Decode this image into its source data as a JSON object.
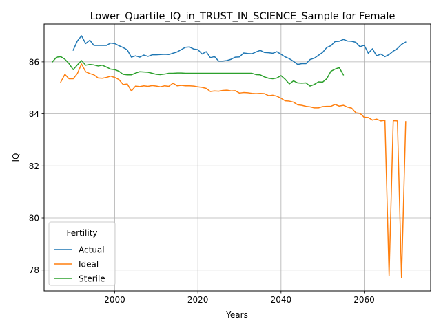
{
  "chart_data": {
    "type": "line",
    "title": "Lower_Quartile_IQ_in_TRUST_IN_SCIENCE_Sample for Female",
    "xlabel": "Years",
    "ylabel": "IQ",
    "xlim": [
      1983,
      2076
    ],
    "ylim": [
      77.2,
      87.45
    ],
    "xticks": [
      2000,
      2020,
      2040,
      2060
    ],
    "yticks": [
      78,
      80,
      82,
      84,
      86
    ],
    "grid": true,
    "legend": {
      "title": "Fertility",
      "placement": "lower-left"
    },
    "series": [
      {
        "name": "Actual",
        "color": "#1f77b4",
        "x": [
          1990,
          1991,
          1992,
          1993,
          1994,
          1995,
          1996,
          1997,
          1998,
          1999,
          2000,
          2001,
          2002,
          2003,
          2004,
          2005,
          2006,
          2007,
          2008,
          2009,
          2010,
          2011,
          2012,
          2013,
          2014,
          2015,
          2016,
          2017,
          2018,
          2019,
          2020,
          2021,
          2022,
          2023,
          2024,
          2025,
          2026,
          2027,
          2028,
          2029,
          2030,
          2031,
          2032,
          2033,
          2034,
          2035,
          2036,
          2037,
          2038,
          2039,
          2040,
          2041,
          2042,
          2043,
          2044,
          2045,
          2046,
          2047,
          2048,
          2049,
          2050,
          2051,
          2052,
          2053,
          2054,
          2055,
          2056,
          2057,
          2058,
          2059,
          2060,
          2061,
          2062,
          2063,
          2064,
          2065,
          2066,
          2067,
          2068,
          2069,
          2070
        ],
        "values": [
          86.45,
          86.8,
          87.0,
          86.7,
          86.83,
          86.63,
          86.63,
          86.63,
          86.63,
          86.72,
          86.7,
          86.62,
          86.55,
          86.46,
          86.18,
          86.23,
          86.18,
          86.26,
          86.21,
          86.27,
          86.27,
          86.28,
          86.29,
          86.28,
          86.33,
          86.38,
          86.47,
          86.56,
          86.57,
          86.49,
          86.47,
          86.3,
          86.39,
          86.16,
          86.2,
          86.03,
          86.03,
          86.05,
          86.1,
          86.18,
          86.19,
          86.34,
          86.32,
          86.31,
          86.38,
          86.44,
          86.36,
          86.35,
          86.33,
          86.39,
          86.29,
          86.19,
          86.12,
          86.02,
          85.9,
          85.93,
          85.93,
          86.09,
          86.14,
          86.25,
          86.36,
          86.55,
          86.62,
          86.78,
          86.79,
          86.86,
          86.8,
          86.79,
          86.75,
          86.58,
          86.64,
          86.33,
          86.5,
          86.23,
          86.3,
          86.2,
          86.28,
          86.41,
          86.51,
          86.67,
          86.76
        ]
      },
      {
        "name": "Ideal",
        "color": "#ff7f0e",
        "x": [
          1987,
          1988,
          1989,
          1990,
          1991,
          1992,
          1993,
          1994,
          1995,
          1996,
          1997,
          1998,
          1999,
          2000,
          2001,
          2002,
          2003,
          2004,
          2005,
          2006,
          2007,
          2008,
          2009,
          2010,
          2011,
          2012,
          2013,
          2014,
          2015,
          2016,
          2017,
          2018,
          2019,
          2020,
          2021,
          2022,
          2023,
          2024,
          2025,
          2026,
          2027,
          2028,
          2029,
          2030,
          2031,
          2032,
          2033,
          2034,
          2035,
          2036,
          2037,
          2038,
          2039,
          2040,
          2041,
          2042,
          2043,
          2044,
          2045,
          2046,
          2047,
          2048,
          2049,
          2050,
          2051,
          2052,
          2053,
          2054,
          2055,
          2056,
          2057,
          2058,
          2059,
          2060,
          2061,
          2062,
          2063,
          2064,
          2065,
          2066,
          2067,
          2068,
          2069,
          2070
        ],
        "values": [
          85.22,
          85.52,
          85.35,
          85.35,
          85.55,
          85.92,
          85.62,
          85.55,
          85.5,
          85.38,
          85.37,
          85.4,
          85.45,
          85.4,
          85.32,
          85.13,
          85.15,
          84.88,
          85.07,
          85.05,
          85.08,
          85.06,
          85.09,
          85.07,
          85.04,
          85.08,
          85.06,
          85.18,
          85.08,
          85.1,
          85.08,
          85.08,
          85.07,
          85.04,
          85.02,
          84.98,
          84.86,
          84.88,
          84.87,
          84.9,
          84.91,
          84.88,
          84.89,
          84.8,
          84.82,
          84.81,
          84.79,
          84.78,
          84.79,
          84.78,
          84.7,
          84.72,
          84.68,
          84.6,
          84.5,
          84.49,
          84.45,
          84.35,
          84.33,
          84.29,
          84.27,
          84.23,
          84.23,
          84.28,
          84.29,
          84.29,
          84.36,
          84.3,
          84.33,
          84.26,
          84.22,
          84.04,
          84.02,
          83.87,
          83.86,
          83.76,
          83.8,
          83.73,
          83.75,
          77.78,
          83.74,
          83.73,
          77.7,
          83.7
        ]
      },
      {
        "name": "Sterile",
        "color": "#2ca02c",
        "x": [
          1985,
          1986,
          1987,
          1988,
          1989,
          1990,
          1991,
          1992,
          1993,
          1994,
          1995,
          1996,
          1997,
          1998,
          1999,
          2000,
          2001,
          2002,
          2003,
          2004,
          2005,
          2006,
          2007,
          2008,
          2009,
          2010,
          2011,
          2012,
          2013,
          2014,
          2015,
          2016,
          2017,
          2018,
          2019,
          2020,
          2021,
          2022,
          2023,
          2024,
          2025,
          2026,
          2027,
          2028,
          2029,
          2030,
          2031,
          2032,
          2033,
          2034,
          2035,
          2036,
          2037,
          2038,
          2039,
          2040,
          2041,
          2042,
          2043,
          2044,
          2045,
          2046,
          2047,
          2048,
          2049,
          2050,
          2051,
          2052,
          2053,
          2054,
          2055
        ],
        "values": [
          86.0,
          86.18,
          86.2,
          86.1,
          85.93,
          85.7,
          85.88,
          86.05,
          85.87,
          85.9,
          85.88,
          85.84,
          85.87,
          85.8,
          85.72,
          85.7,
          85.64,
          85.52,
          85.5,
          85.5,
          85.57,
          85.62,
          85.61,
          85.6,
          85.56,
          85.52,
          85.51,
          85.53,
          85.56,
          85.56,
          85.57,
          85.57,
          85.56,
          85.56,
          85.56,
          85.56,
          85.56,
          85.56,
          85.56,
          85.56,
          85.56,
          85.56,
          85.56,
          85.56,
          85.56,
          85.56,
          85.56,
          85.56,
          85.56,
          85.51,
          85.5,
          85.42,
          85.37,
          85.35,
          85.38,
          85.47,
          85.33,
          85.15,
          85.27,
          85.19,
          85.18,
          85.19,
          85.07,
          85.13,
          85.23,
          85.22,
          85.35,
          85.64,
          85.72,
          85.78,
          85.5
        ]
      }
    ]
  }
}
